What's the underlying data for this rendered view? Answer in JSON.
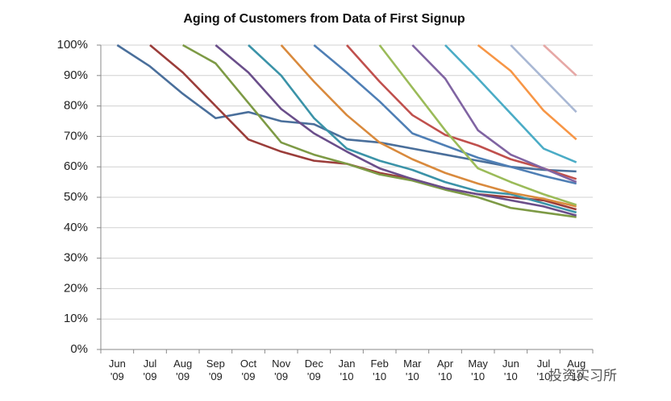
{
  "chart_data": {
    "type": "line",
    "title": "Aging of Customers from Data of First Signup",
    "categories": [
      "Jun '09",
      "Jul '09",
      "Aug '09",
      "Sep '09",
      "Oct '09",
      "Nov '09",
      "Dec '09",
      "Jan '10",
      "Feb '10",
      "Mar '10",
      "Apr '10",
      "May '10",
      "Jun '10",
      "Jul '10",
      "Aug '10"
    ],
    "ylim": [
      0,
      100
    ],
    "yticks": [
      {
        "value": 0,
        "label": "0%"
      },
      {
        "value": 10,
        "label": "10%"
      },
      {
        "value": 20,
        "label": "20%"
      },
      {
        "value": 30,
        "label": "30%"
      },
      {
        "value": 40,
        "label": "40%"
      },
      {
        "value": 50,
        "label": "50%"
      },
      {
        "value": 60,
        "label": "60%"
      },
      {
        "value": 70,
        "label": "70%"
      },
      {
        "value": 80,
        "label": "80%"
      },
      {
        "value": 90,
        "label": "90%"
      },
      {
        "value": 100,
        "label": "100%"
      }
    ],
    "grid": true,
    "series": [
      {
        "color": "#4a6f9b",
        "values": [
          100,
          93,
          84,
          76,
          78,
          75,
          74,
          69,
          68,
          66,
          64,
          62,
          60,
          59,
          58.5
        ]
      },
      {
        "color": "#9b3d3a",
        "values": [
          null,
          100,
          91,
          80,
          69,
          65,
          62,
          61,
          58,
          56,
          53,
          51,
          50,
          49,
          46
        ]
      },
      {
        "color": "#7d9a45",
        "values": [
          null,
          null,
          100,
          94,
          81,
          68,
          64,
          61,
          57.5,
          55.5,
          52.5,
          50,
          46.5,
          45,
          43.5
        ]
      },
      {
        "color": "#6a4e8a",
        "values": [
          null,
          null,
          null,
          100,
          91,
          79,
          71,
          65,
          59.5,
          56,
          53,
          51,
          49,
          47,
          44
        ]
      },
      {
        "color": "#3b93a8",
        "values": [
          null,
          null,
          null,
          null,
          100,
          90,
          76,
          66,
          62,
          59,
          55,
          52,
          51,
          48,
          45
        ]
      },
      {
        "color": "#d98a3d",
        "values": [
          null,
          null,
          null,
          null,
          null,
          100,
          88,
          77,
          68,
          62.5,
          58,
          54.5,
          51.5,
          49.5,
          47
        ]
      },
      {
        "color": "#4f7fb5",
        "values": [
          null,
          null,
          null,
          null,
          null,
          null,
          100,
          91,
          81.5,
          71,
          67,
          63,
          60,
          57,
          54.5
        ]
      },
      {
        "color": "#c0504d",
        "values": [
          null,
          null,
          null,
          null,
          null,
          null,
          null,
          100,
          88,
          77,
          70.5,
          67,
          62.5,
          59.5,
          56
        ]
      },
      {
        "color": "#9bbb59",
        "values": [
          null,
          null,
          null,
          null,
          null,
          null,
          null,
          null,
          100,
          86,
          72,
          59.5,
          55,
          51,
          47.5
        ]
      },
      {
        "color": "#8064a2",
        "values": [
          null,
          null,
          null,
          null,
          null,
          null,
          null,
          null,
          null,
          100,
          89,
          72,
          64,
          59.5,
          55
        ]
      },
      {
        "color": "#4bacc6",
        "values": [
          null,
          null,
          null,
          null,
          null,
          null,
          null,
          null,
          null,
          null,
          100,
          89,
          77.5,
          66,
          61.5
        ]
      },
      {
        "color": "#f79646",
        "values": [
          null,
          null,
          null,
          null,
          null,
          null,
          null,
          null,
          null,
          null,
          null,
          100,
          91.5,
          78.5,
          69
        ]
      },
      {
        "color": "#a9b8d4",
        "values": [
          null,
          null,
          null,
          null,
          null,
          null,
          null,
          null,
          null,
          null,
          null,
          null,
          100,
          89,
          78
        ]
      },
      {
        "color": "#e6a8a6",
        "values": [
          null,
          null,
          null,
          null,
          null,
          null,
          null,
          null,
          null,
          null,
          null,
          null,
          null,
          100,
          90
        ]
      }
    ]
  },
  "watermark": "投资实习所"
}
